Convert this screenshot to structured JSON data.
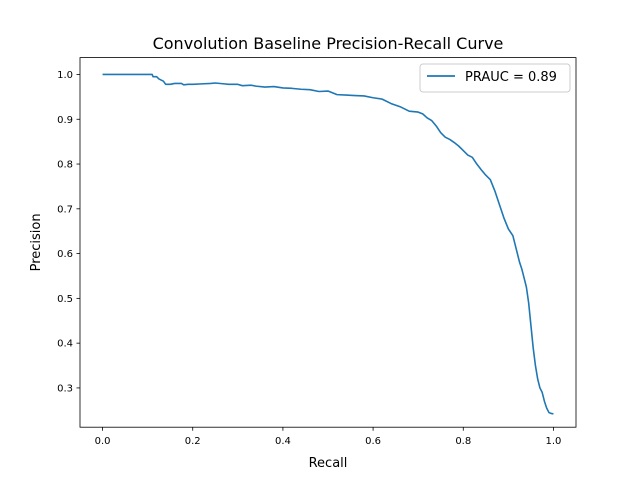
{
  "chart_data": {
    "type": "line",
    "title": "Convolution Baseline Precision-Recall Curve",
    "xlabel": "Recall",
    "ylabel": "Precision",
    "xlim": [
      -0.05,
      1.05
    ],
    "ylim": [
      0.2123,
      1.0377
    ],
    "xticks": [
      0.0,
      0.2,
      0.4,
      0.6,
      0.8,
      1.0
    ],
    "xtick_labels": [
      "0.0",
      "0.2",
      "0.4",
      "0.6",
      "0.8",
      "1.0"
    ],
    "yticks": [
      0.3,
      0.4,
      0.5,
      0.6,
      0.7,
      0.8,
      0.9,
      1.0
    ],
    "ytick_labels": [
      "0.3",
      "0.4",
      "0.5",
      "0.6",
      "0.7",
      "0.8",
      "0.9",
      "1.0"
    ],
    "grid": false,
    "legend_position": "top-right",
    "series": [
      {
        "name": "PRAUC = 0.89",
        "color": "#1f77b4",
        "x": [
          0.0,
          0.005,
          0.02,
          0.05,
          0.08,
          0.1,
          0.11,
          0.112,
          0.12,
          0.125,
          0.135,
          0.14,
          0.15,
          0.16,
          0.175,
          0.18,
          0.19,
          0.2,
          0.22,
          0.24,
          0.25,
          0.27,
          0.28,
          0.3,
          0.31,
          0.33,
          0.34,
          0.36,
          0.38,
          0.4,
          0.42,
          0.44,
          0.46,
          0.48,
          0.5,
          0.52,
          0.54,
          0.56,
          0.58,
          0.6,
          0.62,
          0.64,
          0.66,
          0.68,
          0.7,
          0.71,
          0.72,
          0.73,
          0.74,
          0.75,
          0.76,
          0.77,
          0.78,
          0.79,
          0.8,
          0.81,
          0.82,
          0.83,
          0.84,
          0.85,
          0.86,
          0.87,
          0.88,
          0.89,
          0.9,
          0.91,
          0.92,
          0.925,
          0.93,
          0.935,
          0.94,
          0.945,
          0.95,
          0.955,
          0.96,
          0.965,
          0.97,
          0.975,
          0.98,
          0.985,
          0.99,
          0.995,
          1.0
        ],
        "y": [
          1.0,
          1.0,
          1.0,
          1.0,
          1.0,
          1.0,
          1.0,
          0.995,
          0.995,
          0.99,
          0.985,
          0.978,
          0.978,
          0.98,
          0.98,
          0.977,
          0.978,
          0.978,
          0.979,
          0.98,
          0.981,
          0.979,
          0.978,
          0.978,
          0.975,
          0.976,
          0.974,
          0.972,
          0.973,
          0.97,
          0.969,
          0.967,
          0.966,
          0.962,
          0.963,
          0.955,
          0.954,
          0.953,
          0.952,
          0.948,
          0.945,
          0.935,
          0.928,
          0.918,
          0.916,
          0.912,
          0.903,
          0.897,
          0.885,
          0.87,
          0.86,
          0.855,
          0.848,
          0.84,
          0.83,
          0.82,
          0.815,
          0.8,
          0.787,
          0.775,
          0.765,
          0.74,
          0.71,
          0.68,
          0.655,
          0.64,
          0.6,
          0.58,
          0.565,
          0.545,
          0.525,
          0.49,
          0.44,
          0.39,
          0.35,
          0.32,
          0.3,
          0.29,
          0.27,
          0.255,
          0.245,
          0.243,
          0.242
        ]
      }
    ]
  }
}
